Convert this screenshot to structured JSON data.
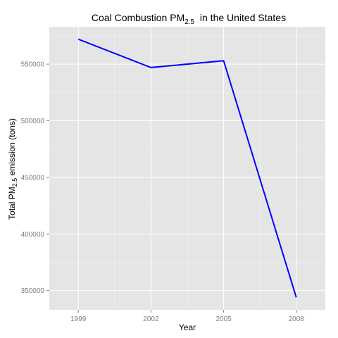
{
  "chart_data": {
    "type": "line",
    "title": {
      "prefix": "Coal Combustion PM",
      "subscript": "2.5",
      "suffix": "  in the United States"
    },
    "xlabel": "Year",
    "ylabel": {
      "prefix": "Total PM",
      "subscript": "2.5",
      "suffix": " emission (tons)"
    },
    "x": [
      1999,
      2002,
      2005,
      2008
    ],
    "x_ticks": [
      "1999",
      "2002",
      "2005",
      "2008"
    ],
    "xlim": [
      1997.8,
      2009.2
    ],
    "y_ticks": [
      350000,
      400000,
      450000,
      500000,
      550000
    ],
    "y_tick_labels": [
      "350000",
      "400000",
      "450000",
      "500000",
      "550000"
    ],
    "ylim": [
      333000,
      583000
    ],
    "series": [
      {
        "values": [
          572000,
          547000,
          553000,
          344000
        ],
        "color": "#0000ff"
      }
    ],
    "panel_background": "#e5e5e5",
    "grid_color": "#ffffff",
    "grid": true,
    "legend": "none"
  }
}
